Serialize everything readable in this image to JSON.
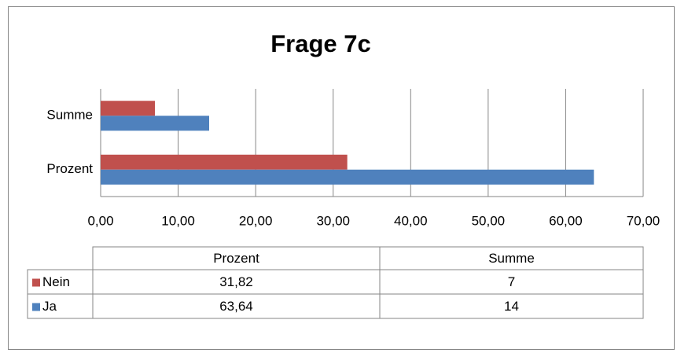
{
  "chart_data": {
    "type": "bar",
    "orientation": "horizontal",
    "title": "Frage 7c",
    "categories": [
      "Prozent",
      "Summe"
    ],
    "series": [
      {
        "name": "Nein",
        "color": "#c0504d",
        "values": [
          31.82,
          7
        ],
        "value_labels": [
          "31,82",
          "7"
        ]
      },
      {
        "name": "Ja",
        "color": "#4f81bd",
        "values": [
          63.64,
          14
        ],
        "value_labels": [
          "63,64",
          "14"
        ]
      }
    ],
    "xlim": [
      0,
      70
    ],
    "xticks": [
      {
        "value": 0,
        "label": "0,00"
      },
      {
        "value": 10,
        "label": "10,00"
      },
      {
        "value": 20,
        "label": "20,00"
      },
      {
        "value": 30,
        "label": "30,00"
      },
      {
        "value": 40,
        "label": "40,00"
      },
      {
        "value": 50,
        "label": "50,00"
      },
      {
        "value": 60,
        "label": "60,00"
      },
      {
        "value": 70,
        "label": "70,00"
      }
    ],
    "grid": true,
    "data_table": true
  }
}
